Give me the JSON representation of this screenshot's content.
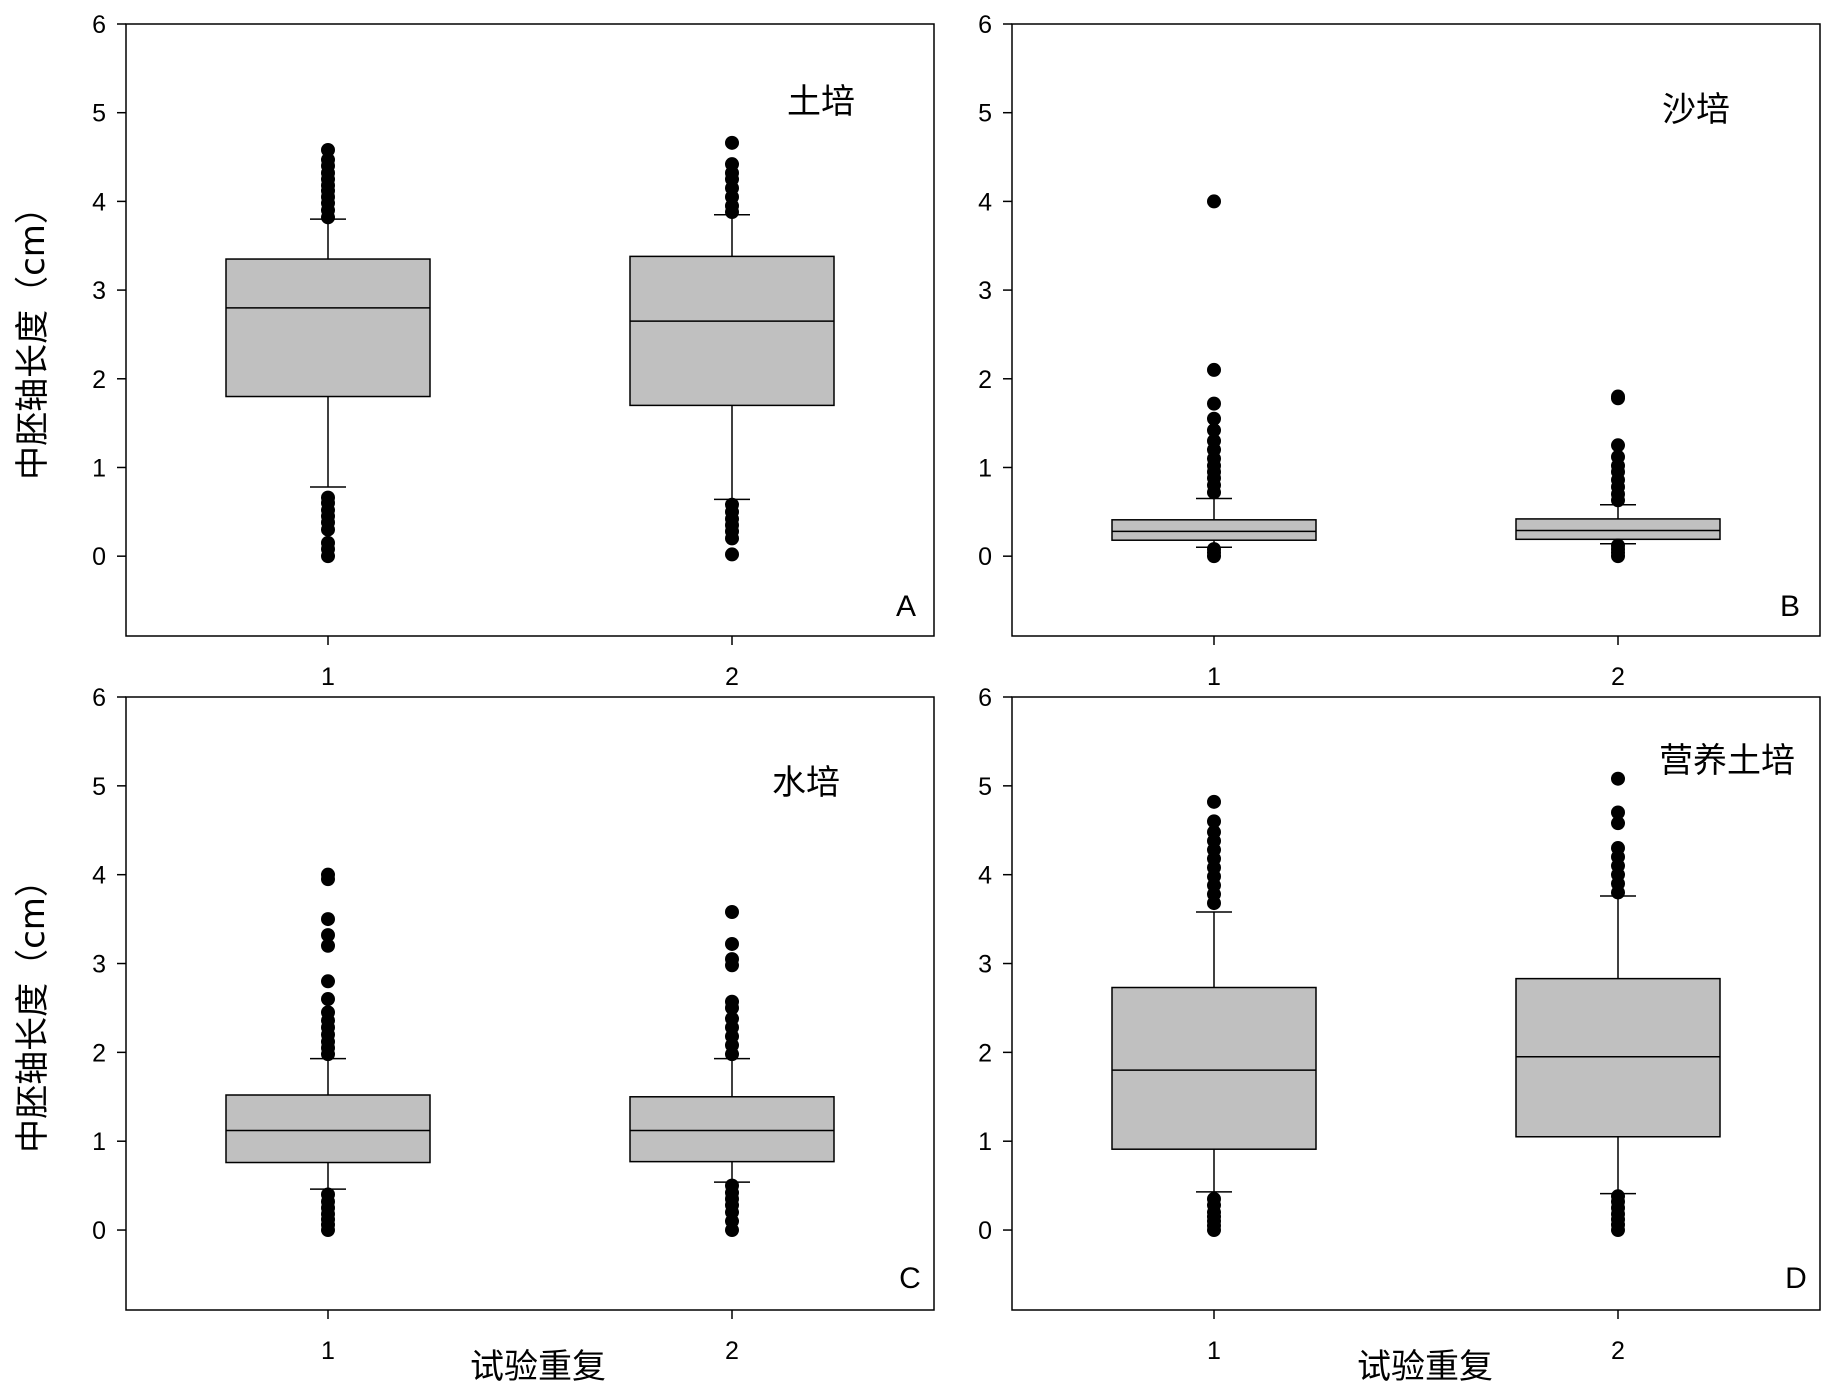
{
  "figure": {
    "ylabel": "中胚轴长度（cm）",
    "xlabel": "试验重复"
  },
  "colors": {
    "box_fill": "#c0c0c0",
    "stroke": "#000000",
    "outlier": "#000000"
  },
  "chart_data": [
    {
      "type": "boxplot",
      "panel": "A",
      "title": "土培",
      "ylim": [
        -0.9,
        6
      ],
      "yticks": [
        0,
        1,
        2,
        3,
        4,
        5,
        6
      ],
      "categories": [
        "1",
        "2"
      ],
      "series": [
        {
          "category": "1",
          "q1": 1.8,
          "median": 2.8,
          "q3": 3.35,
          "whisker_low": 0.78,
          "whisker_high": 3.8,
          "outliers": [
            0.0,
            0.08,
            0.15,
            0.3,
            0.38,
            0.45,
            0.52,
            0.6,
            0.66,
            3.82,
            3.9,
            3.98,
            4.05,
            4.12,
            4.18,
            4.25,
            4.32,
            4.4,
            4.47,
            4.58
          ]
        },
        {
          "category": "2",
          "q1": 1.7,
          "median": 2.65,
          "q3": 3.38,
          "whisker_low": 0.64,
          "whisker_high": 3.85,
          "outliers": [
            0.02,
            0.2,
            0.28,
            0.35,
            0.42,
            0.5,
            0.58,
            3.88,
            3.95,
            4.05,
            4.15,
            4.25,
            4.32,
            4.42,
            4.66
          ]
        }
      ]
    },
    {
      "type": "boxplot",
      "panel": "B",
      "title": "沙培",
      "ylim": [
        -0.9,
        6
      ],
      "yticks": [
        0,
        1,
        2,
        3,
        4,
        5,
        6
      ],
      "categories": [
        "1",
        "2"
      ],
      "series": [
        {
          "category": "1",
          "q1": 0.18,
          "median": 0.28,
          "q3": 0.41,
          "whisker_low": 0.1,
          "whisker_high": 0.65,
          "outliers": [
            0.0,
            0.04,
            0.08,
            0.72,
            0.8,
            0.88,
            0.95,
            1.02,
            1.1,
            1.2,
            1.3,
            1.42,
            1.55,
            1.72,
            2.1,
            4.0
          ]
        },
        {
          "category": "2",
          "q1": 0.19,
          "median": 0.29,
          "q3": 0.42,
          "whisker_low": 0.14,
          "whisker_high": 0.58,
          "outliers": [
            0.0,
            0.04,
            0.08,
            0.12,
            0.63,
            0.7,
            0.78,
            0.86,
            0.95,
            1.02,
            1.12,
            1.25,
            1.78,
            1.8
          ]
        }
      ]
    },
    {
      "type": "boxplot",
      "panel": "C",
      "title": "水培",
      "ylim": [
        -0.9,
        6
      ],
      "yticks": [
        0,
        1,
        2,
        3,
        4,
        5,
        6
      ],
      "categories": [
        "1",
        "2"
      ],
      "series": [
        {
          "category": "1",
          "q1": 0.76,
          "median": 1.12,
          "q3": 1.52,
          "whisker_low": 0.46,
          "whisker_high": 1.93,
          "outliers": [
            0.0,
            0.06,
            0.12,
            0.18,
            0.25,
            0.32,
            0.4,
            1.98,
            2.05,
            2.12,
            2.2,
            2.28,
            2.36,
            2.45,
            2.6,
            2.8,
            3.2,
            3.32,
            3.5,
            3.95,
            4.0
          ]
        },
        {
          "category": "2",
          "q1": 0.77,
          "median": 1.12,
          "q3": 1.5,
          "whisker_low": 0.54,
          "whisker_high": 1.93,
          "outliers": [
            0.0,
            0.1,
            0.2,
            0.28,
            0.35,
            0.42,
            0.5,
            1.98,
            2.08,
            2.18,
            2.28,
            2.38,
            2.5,
            2.57,
            2.98,
            3.05,
            3.22,
            3.58
          ]
        }
      ]
    },
    {
      "type": "boxplot",
      "panel": "D",
      "title": "营养土培",
      "ylim": [
        -0.9,
        6
      ],
      "yticks": [
        0,
        1,
        2,
        3,
        4,
        5,
        6
      ],
      "categories": [
        "1",
        "2"
      ],
      "series": [
        {
          "category": "1",
          "q1": 0.91,
          "median": 1.8,
          "q3": 2.73,
          "whisker_low": 0.43,
          "whisker_high": 3.58,
          "outliers": [
            0.0,
            0.05,
            0.1,
            0.15,
            0.2,
            0.28,
            0.35,
            3.68,
            3.78,
            3.88,
            3.98,
            4.08,
            4.18,
            4.28,
            4.38,
            4.48,
            4.6,
            4.82
          ]
        },
        {
          "category": "2",
          "q1": 1.05,
          "median": 1.95,
          "q3": 2.83,
          "whisker_low": 0.41,
          "whisker_high": 3.76,
          "outliers": [
            0.0,
            0.06,
            0.12,
            0.18,
            0.25,
            0.32,
            0.38,
            3.8,
            3.9,
            4.0,
            4.1,
            4.2,
            4.3,
            4.58,
            4.7,
            5.08
          ]
        }
      ]
    }
  ]
}
